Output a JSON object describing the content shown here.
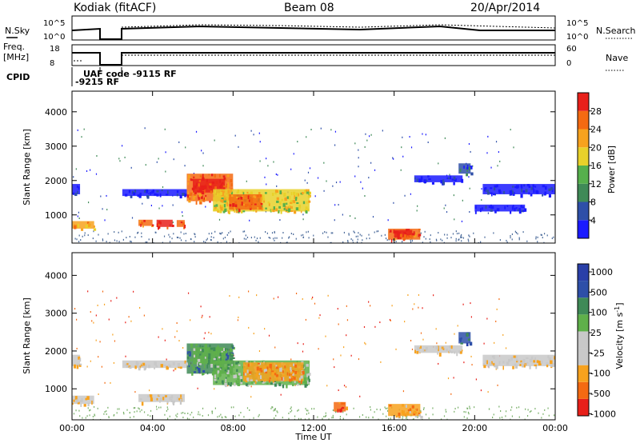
{
  "header": {
    "station": "Kodiak (fitACF)",
    "beam": "Beam 08",
    "date": "20/Apr/2014"
  },
  "summary": {
    "nsky_label": "N.Sky",
    "nsearch_label": "N.Search",
    "freq_label_1": "Freq.",
    "freq_label_2": "[MHz]",
    "nave_label": "Nave",
    "cpid_label": "CPID",
    "noise_ticks": [
      "10^5",
      "10^0"
    ],
    "freq_ticks": [
      "18",
      "8"
    ],
    "nave_ticks": [
      "60",
      "0"
    ],
    "cpid_texts": [
      "UAF code -9115 RF",
      "-9215 RF"
    ]
  },
  "colors": {
    "power": [
      "#1a1aff",
      "#2e4fa8",
      "#3f8a57",
      "#56b04c",
      "#e8d12a",
      "#f7a21e",
      "#f46a12",
      "#e8201a"
    ],
    "velocity": [
      "#e8201a",
      "#f46a12",
      "#f7a21e",
      "#c8c8c8",
      "#c8c8c8",
      "#5fb04a",
      "#3f8a57",
      "#2e4fa8",
      "#2a3fa8"
    ]
  },
  "chart_data": [
    {
      "type": "heatmap",
      "name": "power",
      "xlabel": "",
      "ylabel": "Slant Range [km]",
      "colorbar_label": "Power [dB]",
      "colorbar_ticks": [
        "28",
        "24",
        "20",
        "16",
        "12",
        "8",
        "4"
      ],
      "y_ticks": [
        "4000",
        "3000",
        "2000",
        "1000"
      ],
      "x_range_hours": [
        0,
        24
      ],
      "y_range_km": [
        180,
        4600
      ],
      "blobs": [
        {
          "t0": 0.0,
          "t1": 1.1,
          "r0": 600,
          "r1": 820,
          "level": 5
        },
        {
          "t0": 3.3,
          "t1": 4.0,
          "r0": 680,
          "r1": 860,
          "level": 6
        },
        {
          "t0": 4.2,
          "t1": 5.0,
          "r0": 650,
          "r1": 860,
          "level": 7
        },
        {
          "t0": 5.2,
          "t1": 5.6,
          "r0": 650,
          "r1": 850,
          "level": 6
        },
        {
          "t0": 5.7,
          "t1": 8.0,
          "r0": 1400,
          "r1": 2200,
          "level": 6
        },
        {
          "t0": 6.0,
          "t1": 7.6,
          "r0": 1650,
          "r1": 2050,
          "level": 7
        },
        {
          "t0": 7.0,
          "t1": 11.8,
          "r0": 1100,
          "r1": 1750,
          "level": 4
        },
        {
          "t0": 7.8,
          "t1": 9.4,
          "r0": 1150,
          "r1": 1600,
          "level": 6
        },
        {
          "t0": 15.7,
          "t1": 17.3,
          "r0": 280,
          "r1": 600,
          "level": 6
        },
        {
          "t0": 16.0,
          "t1": 16.9,
          "r0": 340,
          "r1": 560,
          "level": 7
        },
        {
          "t0": 2.5,
          "t1": 5.7,
          "r0": 1550,
          "r1": 1750,
          "level": 0
        },
        {
          "t0": 0.0,
          "t1": 0.4,
          "r0": 1600,
          "r1": 1900,
          "level": 0
        },
        {
          "t0": 17.0,
          "t1": 19.4,
          "r0": 1950,
          "r1": 2150,
          "level": 0
        },
        {
          "t0": 19.2,
          "t1": 19.8,
          "r0": 2200,
          "r1": 2500,
          "level": 1
        },
        {
          "t0": 20.4,
          "t1": 24.0,
          "r0": 1600,
          "r1": 1900,
          "level": 0
        },
        {
          "t0": 20.0,
          "t1": 22.5,
          "r0": 1100,
          "r1": 1300,
          "level": 0
        }
      ]
    },
    {
      "type": "heatmap",
      "name": "velocity",
      "xlabel": "Time UT",
      "ylabel": "Slant Range [km]",
      "colorbar_label": "Velocity [m s",
      "colorbar_label_sup": "-1",
      "colorbar_ticks": [
        "1000",
        "500",
        "100",
        "25",
        "-25",
        "-100",
        "-500",
        "-1000"
      ],
      "y_ticks": [
        "4000",
        "3000",
        "2000",
        "1000"
      ],
      "x_ticks": [
        "00:00",
        "04:00",
        "08:00",
        "12:00",
        "16:00",
        "20:00",
        "00:00"
      ],
      "x_range_hours": [
        0,
        24
      ],
      "y_range_km": [
        180,
        4600
      ],
      "blobs": [
        {
          "t0": 0.0,
          "t1": 1.1,
          "r0": 600,
          "r1": 820,
          "level": 3
        },
        {
          "t0": 3.3,
          "t1": 5.6,
          "r0": 650,
          "r1": 860,
          "level": 3
        },
        {
          "t0": 5.7,
          "t1": 8.0,
          "r0": 1400,
          "r1": 2200,
          "level": 6
        },
        {
          "t0": 6.0,
          "t1": 7.6,
          "r0": 1650,
          "r1": 2100,
          "level": 5
        },
        {
          "t0": 7.0,
          "t1": 11.8,
          "r0": 1100,
          "r1": 1750,
          "level": 5
        },
        {
          "t0": 8.5,
          "t1": 11.5,
          "r0": 1200,
          "r1": 1700,
          "level": 2
        },
        {
          "t0": 15.7,
          "t1": 17.3,
          "r0": 280,
          "r1": 600,
          "level": 2
        },
        {
          "t0": 2.5,
          "t1": 5.7,
          "r0": 1550,
          "r1": 1750,
          "level": 3
        },
        {
          "t0": 0.0,
          "t1": 0.4,
          "r0": 1600,
          "r1": 1900,
          "level": 3
        },
        {
          "t0": 17.0,
          "t1": 19.4,
          "r0": 1950,
          "r1": 2150,
          "level": 3
        },
        {
          "t0": 19.2,
          "t1": 19.8,
          "r0": 2200,
          "r1": 2500,
          "level": 7
        },
        {
          "t0": 20.4,
          "t1": 24.0,
          "r0": 1600,
          "r1": 1900,
          "level": 3
        },
        {
          "t0": 13.0,
          "t1": 13.6,
          "r0": 400,
          "r1": 650,
          "level": 1
        }
      ]
    }
  ]
}
